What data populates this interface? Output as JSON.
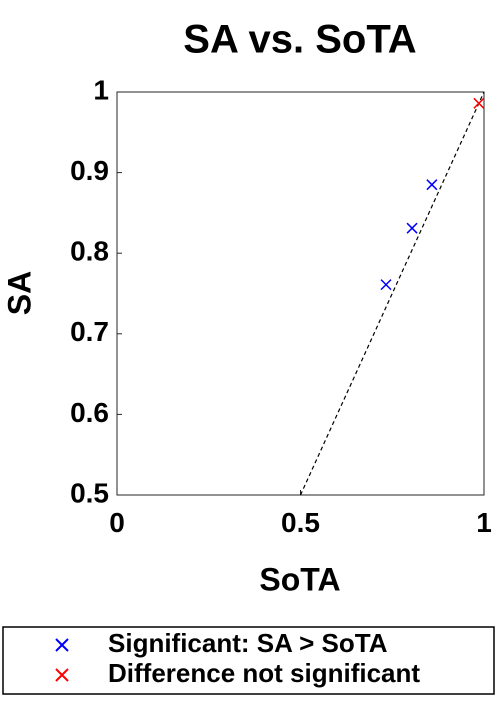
{
  "chart_data": {
    "type": "scatter",
    "title": "SA vs. SoTA",
    "xlabel": "SoTA",
    "ylabel": "SA",
    "xlim": [
      0,
      1
    ],
    "ylim": [
      0.5,
      1
    ],
    "xticks": [
      0,
      0.5,
      1
    ],
    "yticks": [
      0.5,
      0.6,
      0.7,
      0.8,
      0.9,
      1
    ],
    "series": [
      {
        "name": "Significant: SA > SoTA",
        "color": "#0000ff",
        "x": [
          0.733,
          0.804,
          0.858
        ],
        "values": [
          0.761,
          0.831,
          0.885
        ]
      },
      {
        "name": "Difference not significant",
        "color": "#ff0000",
        "x": [
          0.986
        ],
        "values": [
          0.986
        ]
      }
    ],
    "reference_line": {
      "x": [
        0.5,
        1
      ],
      "values": [
        0.5,
        1
      ],
      "color": "#000000",
      "style": "dashed"
    },
    "legend": "bottom"
  }
}
